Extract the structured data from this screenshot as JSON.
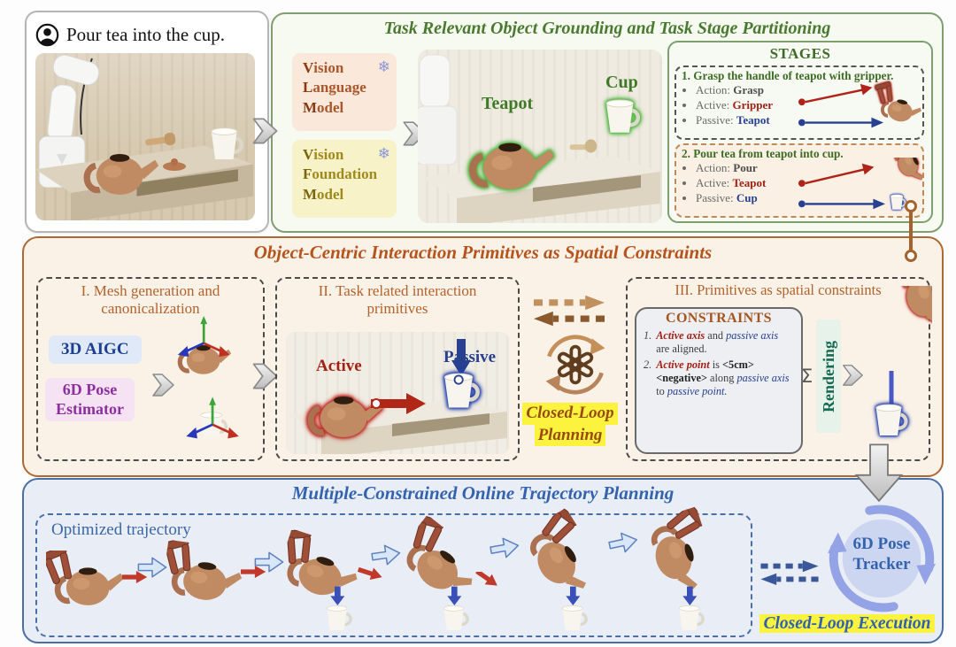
{
  "user_panel": {
    "command": "Pour tea into the cup."
  },
  "grounding": {
    "title": "Task Relevant Object Grounding and Task Stage Partitioning",
    "snowflake": "❄",
    "vlm_lines": [
      "Vision",
      "Language",
      "Model"
    ],
    "vfm_lines": [
      "Vision",
      "Foundation",
      "Model"
    ],
    "scene": {
      "teapot_label": "Teapot",
      "cup_label": "Cup"
    },
    "stages": {
      "title": "STAGES",
      "stage1": {
        "heading": "1. Grasp the handle of teapot with gripper.",
        "bullets": [
          {
            "label": "Action:",
            "value": "Grasp"
          },
          {
            "label": "Active:",
            "value": "Gripper"
          },
          {
            "label": "Passive:",
            "value": "Teapot"
          }
        ]
      },
      "stage2": {
        "heading": "2. Pour tea from teapot into cup.",
        "bullets": [
          {
            "label": "Action:",
            "value": "Pour"
          },
          {
            "label": "Active:",
            "value": "Teapot"
          },
          {
            "label": "Passive:",
            "value": "Cup"
          }
        ]
      }
    }
  },
  "primitives": {
    "title": "Object-Centric Interaction Primitives as Spatial Constraints",
    "box1": {
      "heading_line1": "I. Mesh generation and",
      "heading_line2": "canonicalization",
      "badge_aigc": "3D AIGC",
      "badge_pose_line1": "6D Pose",
      "badge_pose_line2": "Estimator"
    },
    "box2": {
      "heading_line1": "II. Task related interaction",
      "heading_line2": "primitives",
      "active_label": "Active",
      "passive_label": "Passive"
    },
    "loop": {
      "line1": "Closed-Loop",
      "line2": "Planning"
    },
    "box3": {
      "heading": "III. Primitives as spatial constraints",
      "constraints_title": "CONSTRAINTS",
      "item1_num": "1.",
      "item1_runs": [
        {
          "t": "Active axis",
          "cls": "red"
        },
        {
          "t": " and ",
          "cls": "gray"
        },
        {
          "t": "passive axis",
          "cls": "blue"
        },
        {
          "t": " are aligned.",
          "cls": "gray"
        }
      ],
      "item2_num": "2.",
      "item2_runs": [
        {
          "t": "Active point",
          "cls": "red"
        },
        {
          "t": " is ",
          "cls": "gray"
        },
        {
          "t": "<5cm> <negative>",
          "cls": "dark"
        },
        {
          "t": " along ",
          "cls": "gray"
        },
        {
          "t": "passive axis",
          "cls": "blue"
        },
        {
          "t": " to ",
          "cls": "gray"
        },
        {
          "t": "passive point.",
          "cls": "blue"
        }
      ],
      "sigma": "Σ",
      "rendering_label": "Rendering"
    }
  },
  "trajectory": {
    "title": "Multiple-Constrained Online Trajectory Planning",
    "label": "Optimized trajectory",
    "tracker_line1": "6D Pose",
    "tracker_line2": "Tracker",
    "execution_label": "Closed-Loop Execution"
  }
}
